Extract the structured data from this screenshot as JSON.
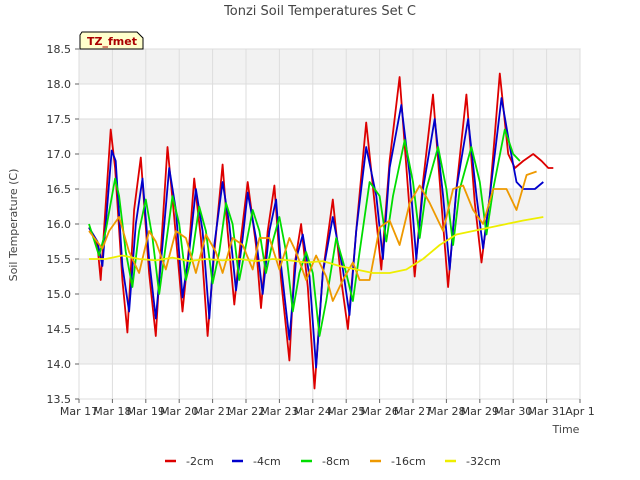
{
  "chart_data": {
    "type": "line",
    "title": "Tonzi Soil Temperatures Set C",
    "xlabel": "Time",
    "ylabel": "Soil Temperature (C)",
    "annotation": "TZ_fmet",
    "xlim": [
      17,
      32
    ],
    "ylim": [
      13.5,
      18.5
    ],
    "x_ticks": [
      {
        "value": 17,
        "label": "Mar 17"
      },
      {
        "value": 18,
        "label": "Mar 18"
      },
      {
        "value": 19,
        "label": "Mar 19"
      },
      {
        "value": 20,
        "label": "Mar 20"
      },
      {
        "value": 21,
        "label": "Mar 21"
      },
      {
        "value": 22,
        "label": "Mar 22"
      },
      {
        "value": 23,
        "label": "Mar 23"
      },
      {
        "value": 24,
        "label": "Mar 24"
      },
      {
        "value": 25,
        "label": "Mar 25"
      },
      {
        "value": 26,
        "label": "Mar 26"
      },
      {
        "value": 27,
        "label": "Mar 27"
      },
      {
        "value": 28,
        "label": "Mar 28"
      },
      {
        "value": 29,
        "label": "Mar 29"
      },
      {
        "value": 30,
        "label": "Mar 30"
      },
      {
        "value": 31,
        "label": "Mar 31"
      },
      {
        "value": 32,
        "label": "Apr 1"
      }
    ],
    "y_ticks": [
      13.5,
      14.0,
      14.5,
      15.0,
      15.5,
      16.0,
      16.5,
      17.0,
      17.5,
      18.0,
      18.5
    ],
    "y_tick_labels": [
      "13.5",
      "14.0",
      "14.5",
      "15.0",
      "15.5",
      "16.0",
      "16.5",
      "17.0",
      "17.5",
      "18.0",
      "18.5"
    ],
    "grid": true,
    "legend_position": "bottom",
    "series": [
      {
        "name": "-2cm",
        "color": "#dd0000",
        "x": [
          17.3,
          17.55,
          17.65,
          17.95,
          18.08,
          18.3,
          18.45,
          18.65,
          18.85,
          19.1,
          19.3,
          19.45,
          19.65,
          19.85,
          20.1,
          20.3,
          20.45,
          20.65,
          20.85,
          21.05,
          21.3,
          21.45,
          21.65,
          21.85,
          22.05,
          22.3,
          22.45,
          22.65,
          22.85,
          23.05,
          23.3,
          23.45,
          23.65,
          23.85,
          24.05,
          24.3,
          24.6,
          24.85,
          25.05,
          25.3,
          25.6,
          25.85,
          26.05,
          26.3,
          26.6,
          26.85,
          27.05,
          27.3,
          27.6,
          27.85,
          28.05,
          28.3,
          28.6,
          28.85,
          29.05,
          29.3,
          29.6,
          29.85,
          30.05,
          30.3,
          30.6,
          30.85,
          31.05,
          31.2
        ],
        "y": [
          15.95,
          15.7,
          15.2,
          17.35,
          16.8,
          15.2,
          14.45,
          16.2,
          16.95,
          15.3,
          14.4,
          15.6,
          17.1,
          16.1,
          14.75,
          15.7,
          16.65,
          15.8,
          14.4,
          15.6,
          16.85,
          15.9,
          14.85,
          15.8,
          16.6,
          15.7,
          14.8,
          15.9,
          16.55,
          15.2,
          14.05,
          15.4,
          16.0,
          15.1,
          13.65,
          15.3,
          16.35,
          15.2,
          14.5,
          15.9,
          17.45,
          16.3,
          15.35,
          16.9,
          18.1,
          16.5,
          15.25,
          16.6,
          17.85,
          16.3,
          15.1,
          16.5,
          17.85,
          16.3,
          15.45,
          16.4,
          18.15,
          17.0,
          16.8,
          16.9,
          17.0,
          16.9,
          16.8,
          16.8
        ]
      },
      {
        "name": "-4cm",
        "color": "#0000cc",
        "x": [
          17.3,
          17.55,
          17.7,
          17.98,
          18.1,
          18.3,
          18.5,
          18.7,
          18.9,
          19.1,
          19.3,
          19.5,
          19.7,
          19.9,
          20.1,
          20.3,
          20.5,
          20.7,
          20.9,
          21.05,
          21.3,
          21.5,
          21.7,
          21.9,
          22.05,
          22.3,
          22.5,
          22.7,
          22.9,
          23.05,
          23.3,
          23.5,
          23.7,
          23.9,
          24.1,
          24.3,
          24.6,
          24.9,
          25.1,
          25.3,
          25.6,
          25.9,
          26.1,
          26.3,
          26.65,
          26.9,
          27.1,
          27.3,
          27.65,
          27.9,
          28.1,
          28.3,
          28.65,
          28.9,
          29.1,
          29.3,
          29.65,
          29.9,
          30.1,
          30.3,
          30.65,
          30.9
        ],
        "y": [
          15.95,
          15.75,
          15.4,
          17.05,
          16.9,
          15.4,
          14.75,
          16.0,
          16.65,
          15.5,
          14.65,
          15.7,
          16.8,
          16.2,
          14.95,
          15.6,
          16.5,
          15.9,
          14.65,
          15.7,
          16.6,
          16.0,
          15.05,
          15.8,
          16.45,
          15.8,
          15.0,
          15.9,
          16.35,
          15.4,
          14.35,
          15.5,
          15.85,
          15.25,
          13.95,
          15.3,
          16.1,
          15.35,
          14.7,
          15.9,
          17.1,
          16.4,
          15.5,
          16.8,
          17.7,
          16.7,
          15.5,
          16.5,
          17.5,
          16.4,
          15.35,
          16.5,
          17.5,
          16.4,
          15.65,
          16.4,
          17.8,
          17.1,
          16.6,
          16.5,
          16.5,
          16.6
        ]
      },
      {
        "name": "-8cm",
        "color": "#00dd00",
        "x": [
          17.3,
          17.6,
          17.8,
          18.08,
          18.2,
          18.4,
          18.6,
          18.8,
          19.0,
          19.2,
          19.4,
          19.6,
          19.8,
          20.0,
          20.2,
          20.4,
          20.6,
          20.8,
          21.0,
          21.2,
          21.4,
          21.6,
          21.8,
          22.0,
          22.2,
          22.4,
          22.6,
          22.8,
          23.0,
          23.2,
          23.4,
          23.6,
          23.8,
          24.0,
          24.2,
          24.4,
          24.7,
          25.0,
          25.2,
          25.4,
          25.7,
          26.0,
          26.2,
          26.4,
          26.75,
          27.0,
          27.2,
          27.4,
          27.75,
          28.0,
          28.2,
          28.4,
          28.75,
          29.0,
          29.2,
          29.4,
          29.75,
          30.0,
          30.2
        ],
        "y": [
          16.0,
          15.55,
          15.9,
          16.65,
          16.4,
          15.6,
          15.1,
          15.9,
          16.35,
          15.8,
          15.0,
          15.7,
          16.4,
          16.0,
          15.2,
          15.6,
          16.25,
          15.9,
          15.15,
          15.6,
          16.3,
          16.0,
          15.2,
          15.7,
          16.2,
          15.9,
          15.3,
          15.75,
          16.1,
          15.6,
          14.75,
          15.3,
          15.6,
          15.3,
          14.4,
          14.9,
          15.8,
          15.3,
          14.9,
          15.6,
          16.6,
          16.4,
          15.75,
          16.4,
          17.2,
          16.6,
          15.8,
          16.5,
          17.1,
          16.5,
          15.7,
          16.5,
          17.1,
          16.6,
          15.85,
          16.5,
          17.35,
          17.0,
          16.9
        ]
      },
      {
        "name": "-16cm",
        "color": "#ee9900",
        "x": [
          17.3,
          17.7,
          17.9,
          18.2,
          18.5,
          18.8,
          19.1,
          19.3,
          19.6,
          19.9,
          20.2,
          20.5,
          20.8,
          21.1,
          21.3,
          21.6,
          21.9,
          22.2,
          22.4,
          22.7,
          23.0,
          23.3,
          23.5,
          23.8,
          24.1,
          24.4,
          24.6,
          24.9,
          25.2,
          25.4,
          25.7,
          26.0,
          26.3,
          26.6,
          26.9,
          27.2,
          27.5,
          27.9,
          28.2,
          28.5,
          28.8,
          29.1,
          29.4,
          29.8,
          30.1,
          30.4,
          30.7
        ],
        "y": [
          15.9,
          15.65,
          15.9,
          16.1,
          15.6,
          15.3,
          15.9,
          15.75,
          15.35,
          15.9,
          15.8,
          15.3,
          15.85,
          15.6,
          15.3,
          15.8,
          15.7,
          15.35,
          15.8,
          15.8,
          15.35,
          15.8,
          15.6,
          15.2,
          15.55,
          15.25,
          14.9,
          15.2,
          15.45,
          15.2,
          15.2,
          15.95,
          16.05,
          15.7,
          16.3,
          16.55,
          16.3,
          15.9,
          16.5,
          16.55,
          16.2,
          16.0,
          16.5,
          16.5,
          16.2,
          16.7,
          16.75
        ]
      },
      {
        "name": "-32cm",
        "color": "#eeee00",
        "x": [
          17.3,
          17.8,
          18.3,
          18.8,
          19.3,
          19.8,
          20.3,
          20.8,
          21.3,
          21.8,
          22.3,
          22.8,
          23.3,
          23.8,
          24.3,
          24.8,
          25.3,
          25.8,
          26.3,
          26.8,
          27.3,
          27.8,
          28.3,
          28.8,
          29.3,
          29.8,
          30.3,
          30.9
        ],
        "y": [
          15.5,
          15.5,
          15.55,
          15.5,
          15.48,
          15.52,
          15.47,
          15.5,
          15.48,
          15.5,
          15.47,
          15.5,
          15.48,
          15.45,
          15.47,
          15.4,
          15.35,
          15.3,
          15.3,
          15.35,
          15.5,
          15.7,
          15.85,
          15.9,
          15.95,
          16.0,
          16.05,
          16.1
        ]
      }
    ]
  }
}
